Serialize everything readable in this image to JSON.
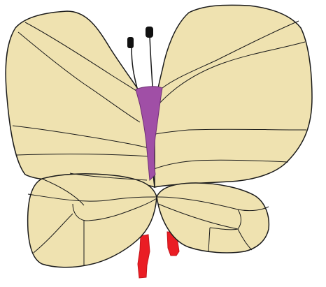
{
  "drawing": {
    "subject": "butterfly",
    "colors": {
      "background": "#ffffff",
      "wing_fill": "#efe2b0",
      "outline": "#1a1a1a",
      "body_fill": "#a04fa6",
      "legs_fill": "#ea1d24",
      "antenna_tip": "#111111"
    },
    "parts": [
      "upper-left-wing",
      "upper-right-wing",
      "lower-left-wing",
      "lower-right-wing",
      "body",
      "antenna-left",
      "antenna-right",
      "leg-left",
      "leg-right"
    ]
  }
}
